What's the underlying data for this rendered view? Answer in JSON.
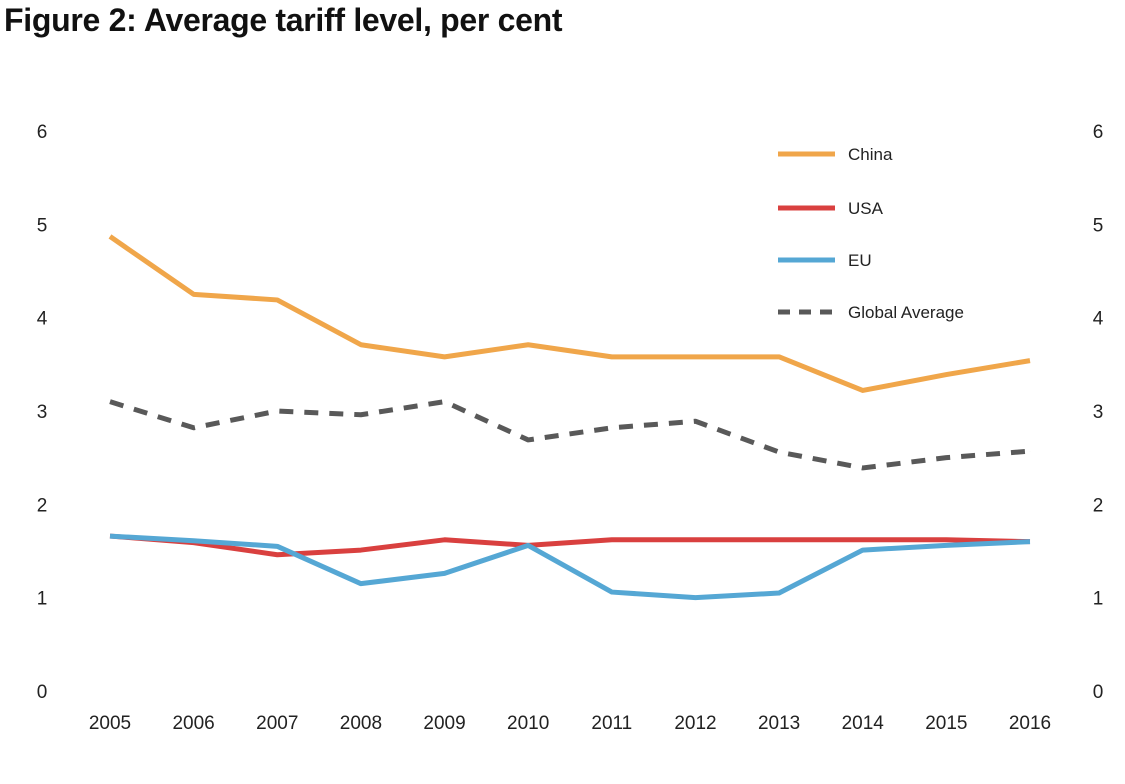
{
  "chart_data": {
    "type": "line",
    "title": "Figure 2: Average tariff level, per cent",
    "xlabel": "",
    "ylabel": "",
    "ylim": [
      0,
      6
    ],
    "yticks": [
      "0",
      "1",
      "2",
      "3",
      "4",
      "5",
      "6"
    ],
    "x": [
      "2005",
      "2006",
      "2007",
      "2008",
      "2009",
      "2010",
      "2011",
      "2012",
      "2013",
      "2014",
      "2015",
      "2016"
    ],
    "grid": false,
    "legend_position": "top-right",
    "series": [
      {
        "name": "China",
        "color": "#F0A64A",
        "dash": false,
        "values": [
          4.87,
          4.25,
          4.19,
          3.71,
          3.58,
          3.71,
          3.58,
          3.58,
          3.58,
          3.22,
          3.39,
          3.54
        ]
      },
      {
        "name": "USA",
        "color": "#D9403F",
        "dash": false,
        "values": [
          1.66,
          1.59,
          1.46,
          1.51,
          1.62,
          1.56,
          1.62,
          1.62,
          1.62,
          1.62,
          1.62,
          1.6
        ]
      },
      {
        "name": "EU",
        "color": "#55A7D4",
        "dash": false,
        "values": [
          1.66,
          1.61,
          1.55,
          1.15,
          1.26,
          1.56,
          1.06,
          1.0,
          1.05,
          1.51,
          1.56,
          1.6
        ]
      },
      {
        "name": "Global Average",
        "color": "#595959",
        "dash": true,
        "values": [
          3.1,
          2.82,
          3.0,
          2.96,
          3.1,
          2.69,
          2.82,
          2.89,
          2.56,
          2.39,
          2.5,
          2.57
        ]
      }
    ]
  }
}
